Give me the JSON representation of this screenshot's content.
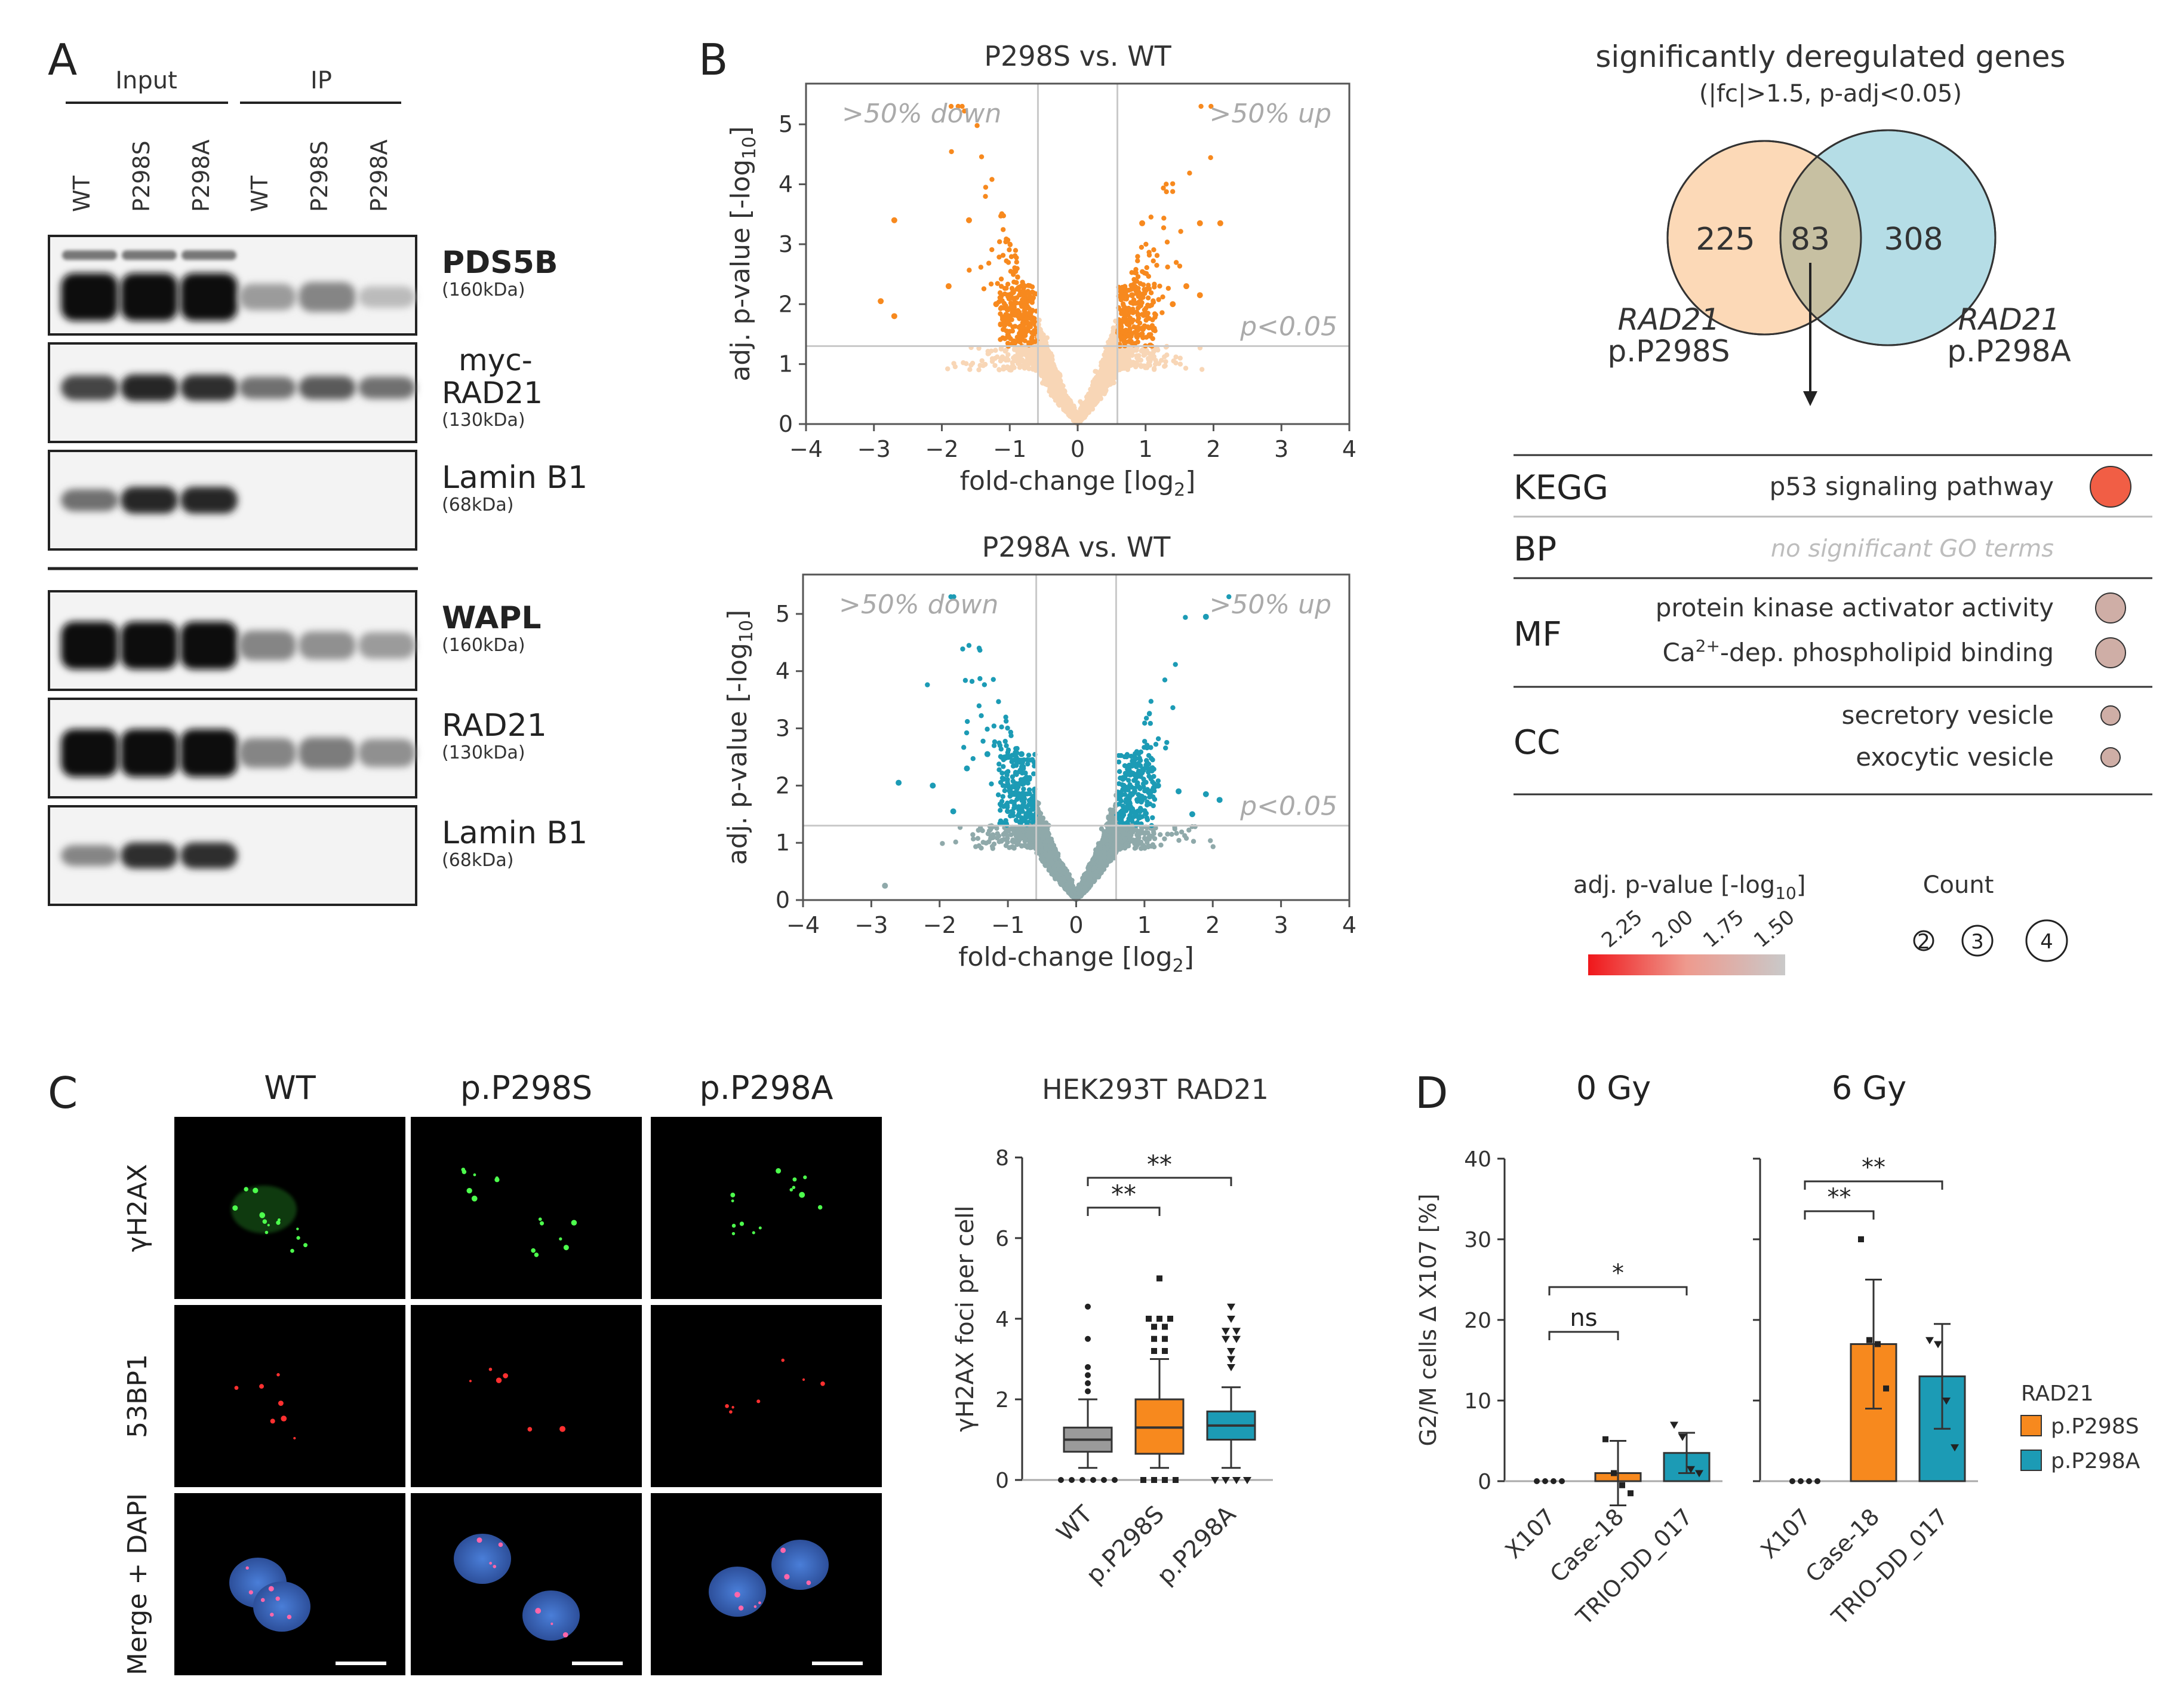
{
  "panels": {
    "A": {
      "letter": "A",
      "groups": [
        "Input",
        "IP"
      ],
      "lanes": [
        "WT",
        "P298S",
        "P298A",
        "WT",
        "P298S",
        "P298A"
      ],
      "blots": [
        {
          "name": "PDS5B",
          "size": "(160kDa)",
          "bold": true
        },
        {
          "name": "myc-",
          "name2": "RAD21",
          "size": "(130kDa)",
          "bold": false
        },
        {
          "name": "Lamin B1",
          "size": "(68kDa)",
          "bold": false
        },
        {
          "name": "WAPL",
          "size": "(160kDa)",
          "bold": true
        },
        {
          "name": "RAD21",
          "size": "(130kDa)",
          "bold": false
        },
        {
          "name": "Lamin B1",
          "size": "(68kDa)",
          "bold": false
        }
      ]
    },
    "B": {
      "letter": "B",
      "plots": [
        {
          "title": "P298S vs. WT",
          "down_label": ">50% down",
          "up_label": ">50% up",
          "p_label": "p<0.05",
          "theme": "orange"
        },
        {
          "title": "P298A vs. WT",
          "down_label": ">50% down",
          "up_label": ">50% up",
          "p_label": "p<0.05",
          "theme": "teal"
        }
      ],
      "ylabel": "adj. p-value [-log",
      "ylabel_sub": "10",
      "ylabel_end": "]",
      "xlabel": "fold-change [log",
      "xlabel_sub": "2",
      "xlabel_end": "]",
      "x_ticks": [
        "-4",
        "-3",
        "-2",
        "-1",
        "0",
        "1",
        "2",
        "3",
        "4"
      ],
      "y_ticks": [
        "0",
        "1",
        "2",
        "3",
        "4",
        "5"
      ],
      "venn": {
        "title": "significantly deregulated genes",
        "subtitle": "(|fc|>1.5, p-adj<0.05)",
        "left_only": "225",
        "overlap": "83",
        "right_only": "308",
        "left_gene": "RAD21",
        "left_variant": "p.P298S",
        "right_gene": "RAD21",
        "right_variant": "p.P298A"
      },
      "enrichment": {
        "categories": [
          {
            "cat": "KEGG",
            "terms": [
              {
                "text": "p53 signaling pathway",
                "color": "#f15e45",
                "count": 4
              }
            ]
          },
          {
            "cat": "BP",
            "terms": [
              {
                "text": "no significant GO terms",
                "color": "",
                "count": 0
              }
            ]
          },
          {
            "cat": "MF",
            "terms": [
              {
                "text": "protein kinase activator activity",
                "color": "#cfaea6",
                "count": 3
              },
              {
                "text": "Ca",
                "sup": "2+",
                "text_end": "-dep. phospholipid binding",
                "color": "#cfaea6",
                "count": 3
              }
            ]
          },
          {
            "cat": "CC",
            "terms": [
              {
                "text": "secretory vesicle",
                "color": "#cfaea6",
                "count": 2
              },
              {
                "text": "exocytic vesicle",
                "color": "#cfaea6",
                "count": 2
              }
            ]
          }
        ],
        "colorbar_title": "adj. p-value [-log",
        "colorbar_sub": "10",
        "colorbar_end": "]",
        "colorbar_ticks": [
          "2.25",
          "2.00",
          "1.75",
          "1.50"
        ],
        "count_title": "Count",
        "count_values": [
          "2",
          "3",
          "4"
        ]
      }
    },
    "C": {
      "letter": "C",
      "columns": [
        "WT",
        "p.P298S",
        "p.P298A"
      ],
      "rows": [
        "γH2AX",
        "53BP1",
        "Merge + DAPI"
      ],
      "box_title": "HEK293T RAD21",
      "ylabel": "γH2AX foci per cell",
      "y_ticks": [
        "0",
        "2",
        "4",
        "6",
        "8"
      ],
      "sig1": "**",
      "sig2": "**"
    },
    "D": {
      "letter": "D",
      "titles": [
        "0 Gy",
        "6 Gy"
      ],
      "ylabel": "G2/M cells Δ X107 [%]",
      "y_ticks": [
        "0",
        "10",
        "20",
        "30",
        "40"
      ],
      "x_labels": [
        "X107",
        "Case-18",
        "TRIO-DD_017"
      ],
      "sig_0gy": [
        "ns",
        "*"
      ],
      "sig_6gy": [
        "**",
        "**"
      ],
      "legend_title": "RAD21",
      "legend": [
        {
          "label": "p.P298S",
          "color": "#f7891e"
        },
        {
          "label": "p.P298A",
          "color": "#1c9bb5"
        }
      ]
    }
  },
  "chart_data": [
    {
      "type": "scatter",
      "title": "P298S vs. WT",
      "xlabel": "fold-change [log2]",
      "ylabel": "adj. p-value [-log10]",
      "xlim": [
        -4,
        4
      ],
      "ylim": [
        0,
        5.5
      ],
      "thresholds": {
        "x": [
          -0.585,
          0.585
        ],
        "y": 1.3
      },
      "significant_points": [
        [
          -2.7,
          3.4
        ],
        [
          -2.9,
          2.05
        ],
        [
          -2.7,
          1.8
        ],
        [
          -1.6,
          3.4
        ],
        [
          -1.9,
          2.3
        ],
        [
          0.95,
          3.35
        ],
        [
          1.8,
          3.35
        ],
        [
          2.1,
          3.35
        ],
        [
          1.6,
          2.3
        ],
        [
          1.8,
          2.15
        ],
        [
          1.4,
          2.0
        ],
        [
          -1.2,
          2.0
        ],
        [
          -1.1,
          1.75
        ],
        [
          -0.95,
          2.2
        ],
        [
          0.8,
          2.15
        ],
        [
          1.0,
          1.85
        ]
      ],
      "colors": {
        "significant": "#f7891e",
        "other": "#f8d6b6"
      }
    },
    {
      "type": "scatter",
      "title": "P298A vs. WT",
      "xlabel": "fold-change [log2]",
      "ylabel": "adj. p-value [-log10]",
      "xlim": [
        -4,
        4
      ],
      "ylim": [
        0,
        5.5
      ],
      "thresholds": {
        "x": [
          -0.585,
          0.585
        ],
        "y": 1.3
      },
      "significant_points": [
        [
          1.9,
          4.95
        ],
        [
          -2.6,
          2.05
        ],
        [
          -2.1,
          2.0
        ],
        [
          -1.8,
          1.55
        ],
        [
          -1.6,
          2.3
        ],
        [
          -1.3,
          2.55
        ],
        [
          -1.0,
          2.5
        ],
        [
          -0.8,
          2.55
        ],
        [
          1.2,
          2.0
        ],
        [
          1.5,
          1.9
        ],
        [
          1.9,
          1.85
        ],
        [
          2.1,
          1.75
        ],
        [
          0.9,
          2.2
        ],
        [
          1.7,
          1.5
        ]
      ],
      "other_outliers": [
        [
          -2.8,
          0.25
        ]
      ],
      "colors": {
        "significant": "#1c9bb5",
        "other": "#8fa9aa"
      }
    },
    {
      "type": "box",
      "title": "HEK293T RAD21",
      "ylabel": "γH2AX foci per cell",
      "ylim": [
        0,
        8
      ],
      "categories": [
        "WT",
        "p.P298S",
        "p.P298A"
      ],
      "boxes": [
        {
          "q1": 0.7,
          "median": 1.0,
          "q3": 1.3,
          "whisker_low": 0.3,
          "whisker_high": 2.0,
          "color": "#9a9a9a",
          "outliers": [
            4.3,
            3.5,
            2.8,
            2.6,
            2.4,
            2.2,
            0.0,
            0.0,
            0.0,
            0.0,
            0.0,
            0.0
          ]
        },
        {
          "q1": 0.65,
          "median": 1.3,
          "q3": 2.0,
          "whisker_low": 0.3,
          "whisker_high": 3.0,
          "color": "#f7891e",
          "outliers": [
            5.0,
            4.0,
            4.0,
            4.0,
            3.8,
            3.8,
            3.5,
            3.5,
            3.2,
            3.2,
            0.0,
            0.0,
            0.0,
            0.0
          ]
        },
        {
          "q1": 1.0,
          "median": 1.35,
          "q3": 1.7,
          "whisker_low": 0.3,
          "whisker_high": 2.3,
          "color": "#1c9bb5",
          "outliers": [
            4.3,
            4.0,
            3.7,
            3.7,
            3.5,
            3.5,
            3.2,
            3.0,
            2.8,
            0.0,
            0.0,
            0.0,
            0.0
          ]
        }
      ]
    },
    {
      "type": "bar",
      "title": "0 Gy",
      "ylabel": "G2/M cells Δ X107 [%]",
      "ylim": [
        0,
        40
      ],
      "categories": [
        "X107",
        "Case-18",
        "TRIO-DD_017"
      ],
      "values": [
        0,
        1.0,
        3.5
      ],
      "errors": [
        0,
        4.0,
        2.5
      ],
      "points": [
        [
          0,
          0,
          0,
          0
        ],
        [
          5.2,
          1.0,
          -0.5,
          -1.5
        ],
        [
          7.0,
          5.5,
          1.5,
          1.0
        ]
      ]
    },
    {
      "type": "bar",
      "title": "6 Gy",
      "ylabel": "G2/M cells Δ X107 [%]",
      "ylim": [
        0,
        40
      ],
      "categories": [
        "X107",
        "Case-18",
        "TRIO-DD_017"
      ],
      "values": [
        0,
        17.0,
        13.0
      ],
      "errors": [
        0,
        8.0,
        6.5
      ],
      "points": [
        [
          0,
          0,
          0,
          0
        ],
        [
          30.0,
          17.5,
          17.0,
          11.5
        ],
        [
          17.5,
          17.0,
          10.0,
          4.2
        ]
      ]
    }
  ]
}
